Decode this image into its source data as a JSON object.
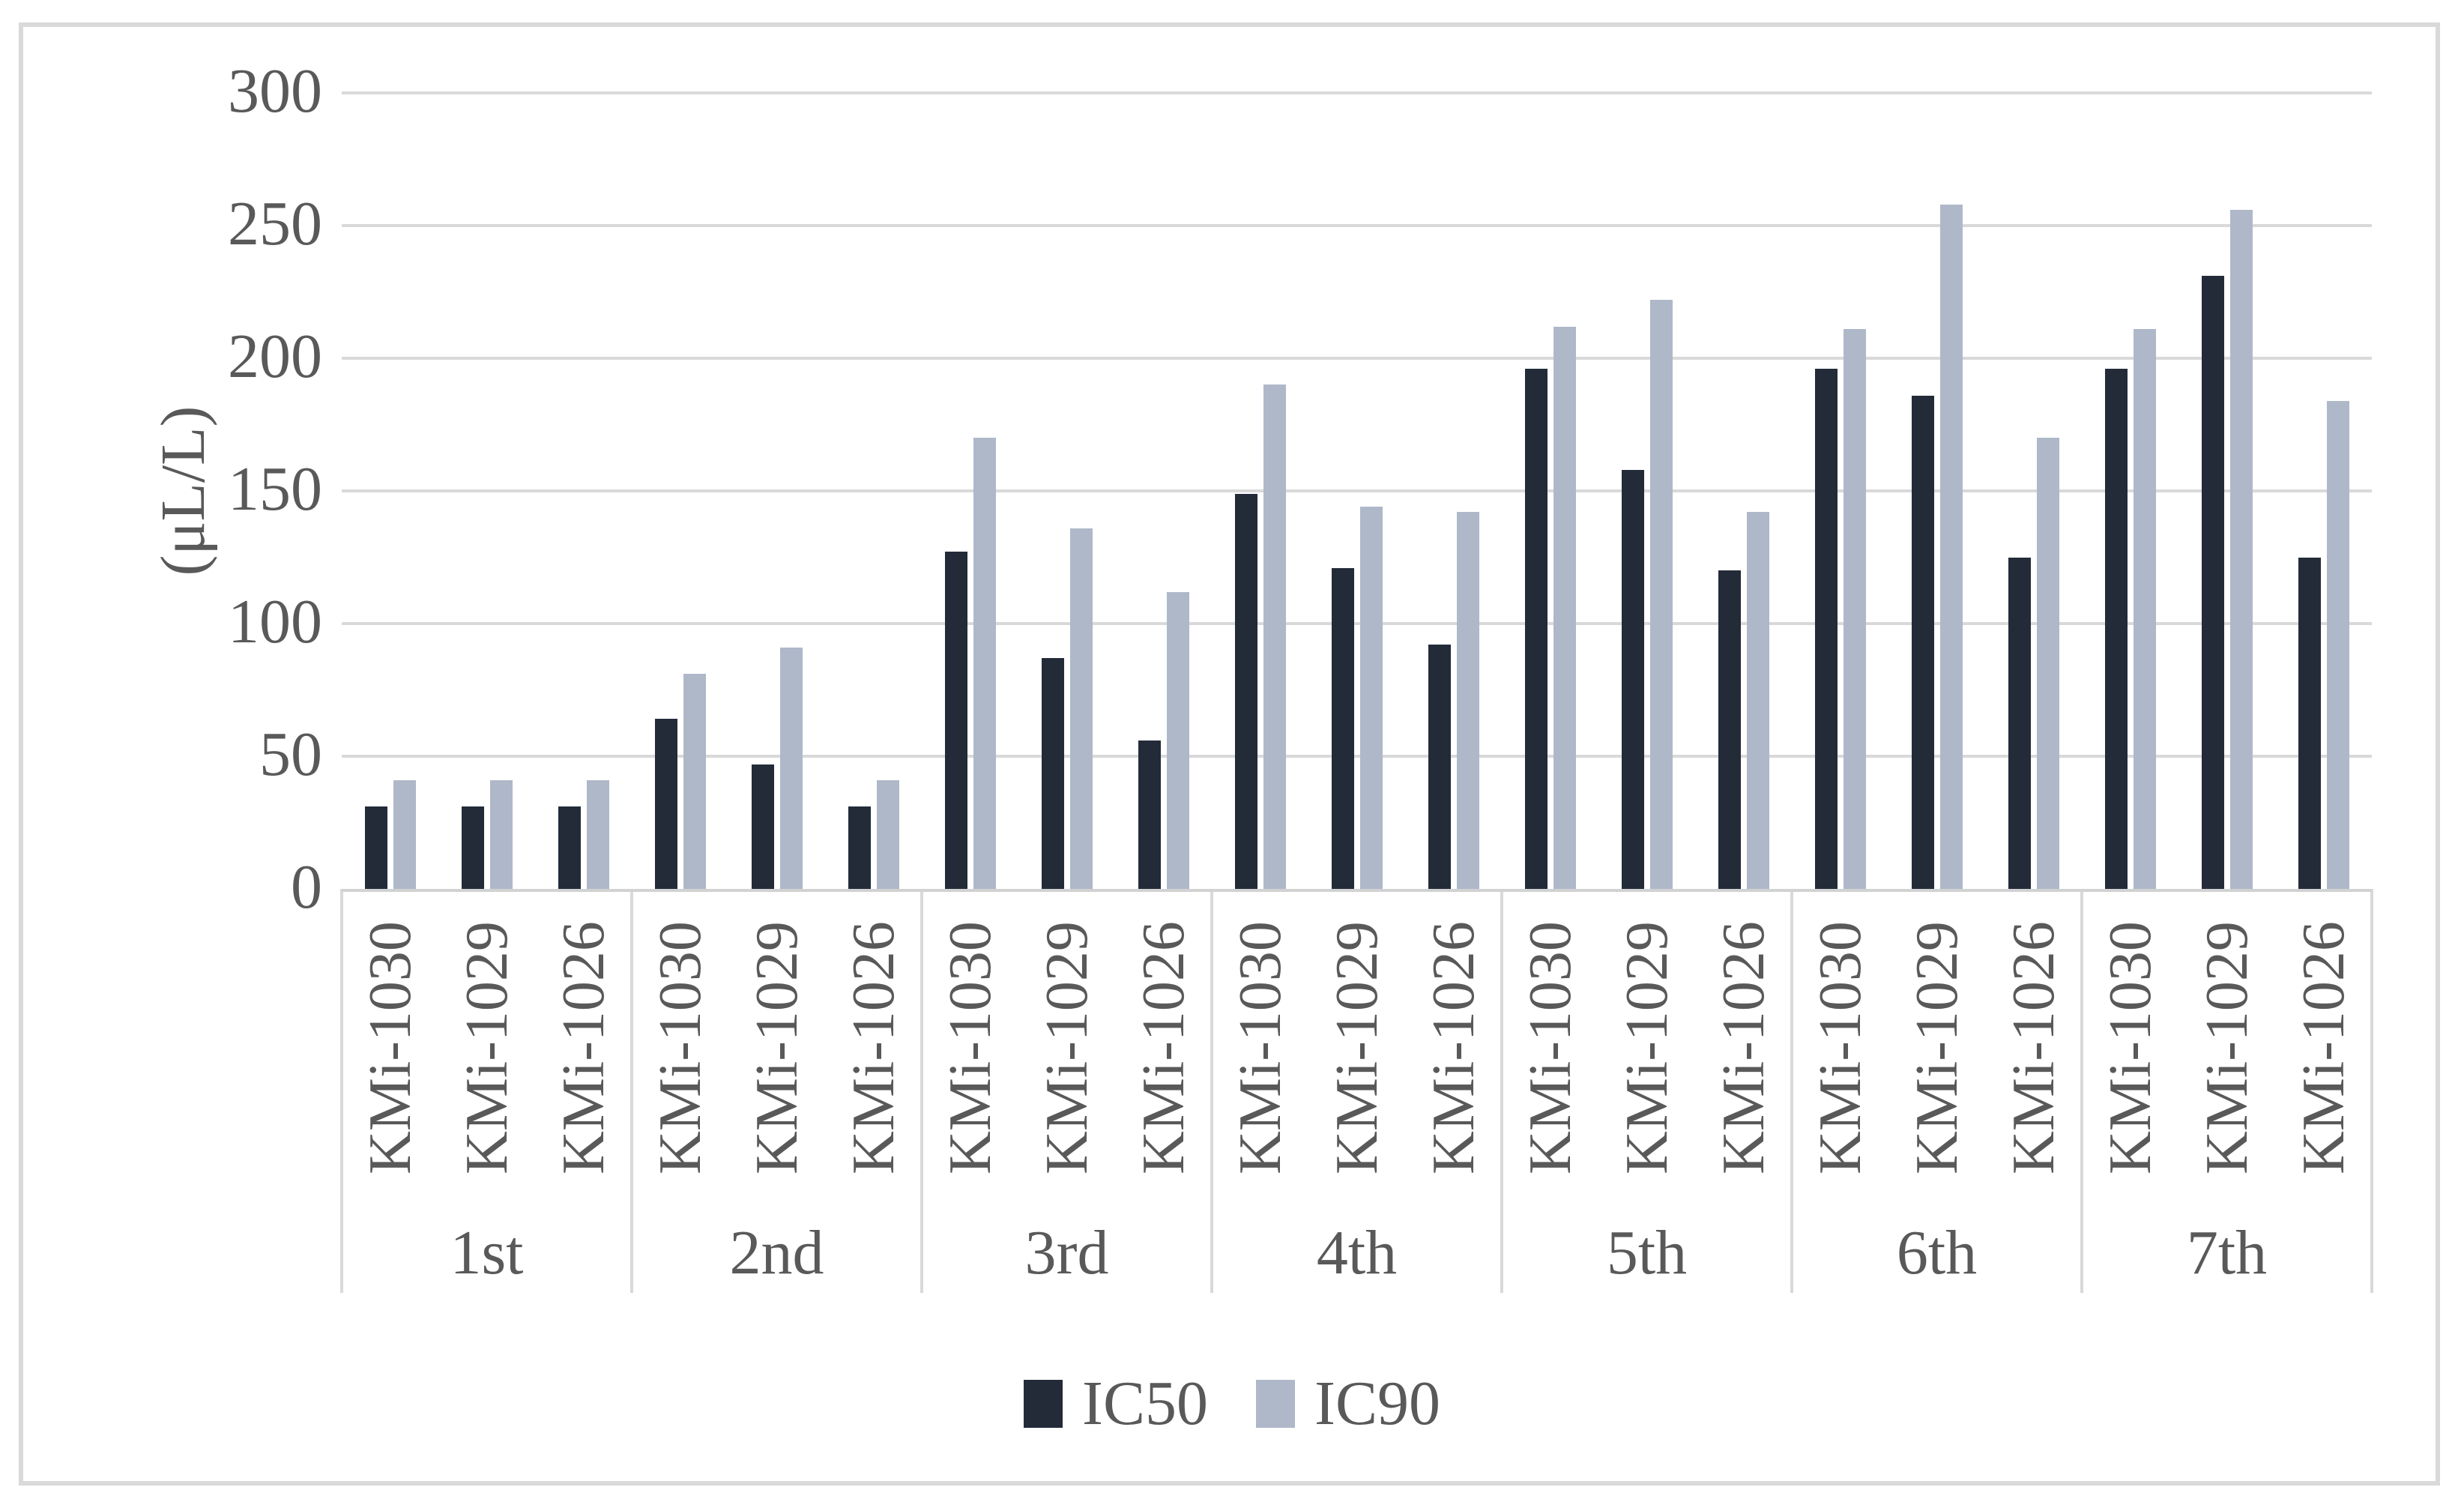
{
  "figure": {
    "background": "#ffffff",
    "border_color": "#d9d9d9",
    "text_color": "#595959",
    "gridline_color": "#d9d9d9",
    "axis_line_color": "#d2d2d2"
  },
  "chart_data": {
    "type": "bar",
    "title": "",
    "xlabel": "",
    "ylabel": "(μL/L)",
    "ylim": [
      0,
      300
    ],
    "yticks": [
      0,
      50,
      100,
      150,
      200,
      250,
      300
    ],
    "grid": true,
    "legend": [
      "IC50",
      "IC90"
    ],
    "legend_position": "bottom",
    "series_colors": {
      "IC50": "#232b39",
      "IC90": "#aeb8c9"
    },
    "group_labels": [
      "1st",
      "2nd",
      "3rd",
      "4th",
      "5th",
      "6th",
      "7th"
    ],
    "bar_labels": [
      "KMi-1030",
      "KMi-1029",
      "KMi-1026"
    ],
    "groups": [
      {
        "label": "1st",
        "bars": [
          {
            "label": "KMi-1030",
            "IC50": 31,
            "IC90": 41
          },
          {
            "label": "KMi-1029",
            "IC50": 31,
            "IC90": 41
          },
          {
            "label": "KMi-1026",
            "IC50": 31,
            "IC90": 41
          }
        ]
      },
      {
        "label": "2nd",
        "bars": [
          {
            "label": "KMi-1030",
            "IC50": 64,
            "IC90": 81
          },
          {
            "label": "KMi-1029",
            "IC50": 47,
            "IC90": 91
          },
          {
            "label": "KMi-1026",
            "IC50": 31,
            "IC90": 41
          }
        ]
      },
      {
        "label": "3rd",
        "bars": [
          {
            "label": "KMi-1030",
            "IC50": 127,
            "IC90": 170
          },
          {
            "label": "KMi-1029",
            "IC50": 87,
            "IC90": 136
          },
          {
            "label": "KMi-1026",
            "IC50": 56,
            "IC90": 112
          }
        ]
      },
      {
        "label": "4th",
        "bars": [
          {
            "label": "KMi-1030",
            "IC50": 149,
            "IC90": 190
          },
          {
            "label": "KMi-1029",
            "IC50": 121,
            "IC90": 144
          },
          {
            "label": "KMi-1026",
            "IC50": 92,
            "IC90": 142
          }
        ]
      },
      {
        "label": "5th",
        "bars": [
          {
            "label": "KMi-1030",
            "IC50": 196,
            "IC90": 212
          },
          {
            "label": "KMi-1029",
            "IC50": 158,
            "IC90": 222
          },
          {
            "label": "KMi-1026",
            "IC50": 120,
            "IC90": 142
          }
        ]
      },
      {
        "label": "6th",
        "bars": [
          {
            "label": "KMi-1030",
            "IC50": 196,
            "IC90": 211
          },
          {
            "label": "KMi-1029",
            "IC50": 186,
            "IC90": 258
          },
          {
            "label": "KMi-1026",
            "IC50": 125,
            "IC90": 170
          }
        ]
      },
      {
        "label": "7th",
        "bars": [
          {
            "label": "KMi-1030",
            "IC50": 196,
            "IC90": 211
          },
          {
            "label": "KMi-1029",
            "IC50": 231,
            "IC90": 256
          },
          {
            "label": "KMi-1026",
            "IC50": 125,
            "IC90": 184
          }
        ]
      }
    ]
  }
}
